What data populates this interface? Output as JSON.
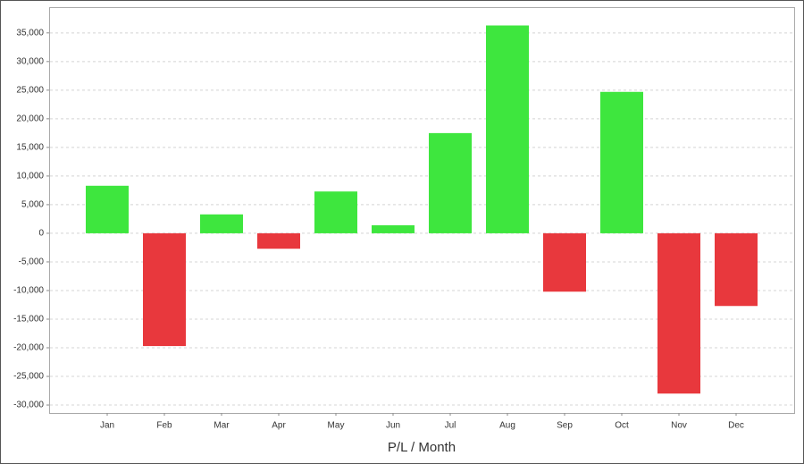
{
  "chart_data": {
    "type": "bar",
    "x_label": "P/L / Month",
    "categories": [
      "Jan",
      "Feb",
      "Mar",
      "Apr",
      "May",
      "Jun",
      "Jul",
      "Aug",
      "Sep",
      "Oct",
      "Nov",
      "Dec"
    ],
    "values": [
      8300,
      -19700,
      3300,
      -2700,
      7300,
      1400,
      17500,
      36300,
      -10200,
      24700,
      -28000,
      -12700
    ],
    "positive_color": "#3ee63e",
    "negative_color": "#e8383d",
    "ylim": [
      -31400,
      39500
    ],
    "yticks": [
      {
        "value": -30000,
        "label": "-30,000"
      },
      {
        "value": -25000,
        "label": "-25,000"
      },
      {
        "value": -20000,
        "label": "-20,000"
      },
      {
        "value": -15000,
        "label": "-15,000"
      },
      {
        "value": -10000,
        "label": "-10,000"
      },
      {
        "value": -5000,
        "label": "-5,000"
      },
      0,
      {
        "value": 5000,
        "label": "5,000"
      },
      {
        "value": 10000,
        "label": "10,000"
      },
      {
        "value": 15000,
        "label": "15,000"
      },
      {
        "value": 20000,
        "label": "20,000"
      },
      {
        "value": 25000,
        "label": "25,000"
      },
      {
        "value": 30000,
        "label": "30,000"
      },
      {
        "value": 35000,
        "label": "35,000"
      }
    ],
    "grid": true
  }
}
